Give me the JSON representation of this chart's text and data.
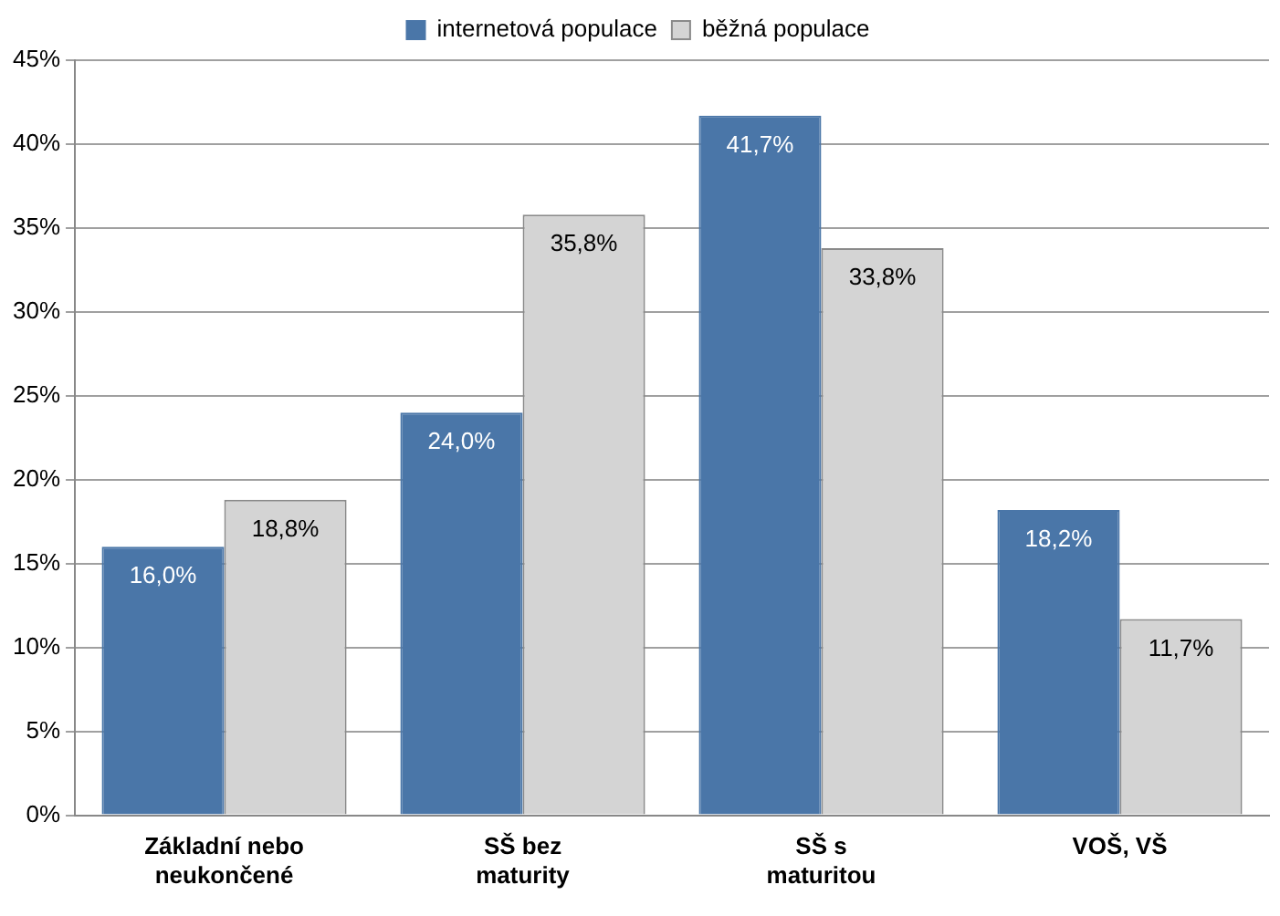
{
  "chart_data": {
    "type": "bar",
    "categories": [
      "Základní nebo\nneukončené",
      "SŠ bez\nmaturity",
      "SŠ s\nmaturitou",
      "VOŠ, VŠ"
    ],
    "series": [
      {
        "name": "internetová populace",
        "color": "#4a76a8",
        "values": [
          16.0,
          24.0,
          41.7,
          18.2
        ],
        "value_labels": [
          "16,0%",
          "24,0%",
          "41,7%",
          "18,2%"
        ]
      },
      {
        "name": "běžná populace",
        "color": "#d4d4d4",
        "values": [
          18.8,
          35.8,
          33.8,
          11.7
        ],
        "value_labels": [
          "18,8%",
          "35,8%",
          "33,8%",
          "11,7%"
        ]
      }
    ],
    "ylim": [
      0,
      45
    ],
    "yticks": [
      {
        "value": 0,
        "label": "0%"
      },
      {
        "value": 5,
        "label": "5%"
      },
      {
        "value": 10,
        "label": "10%"
      },
      {
        "value": 15,
        "label": "15%"
      },
      {
        "value": 20,
        "label": "20%"
      },
      {
        "value": 25,
        "label": "25%"
      },
      {
        "value": 30,
        "label": "30%"
      },
      {
        "value": 35,
        "label": "35%"
      },
      {
        "value": 40,
        "label": "40%"
      },
      {
        "value": 45,
        "label": "45%"
      }
    ],
    "grid": "y",
    "legend": "top"
  }
}
